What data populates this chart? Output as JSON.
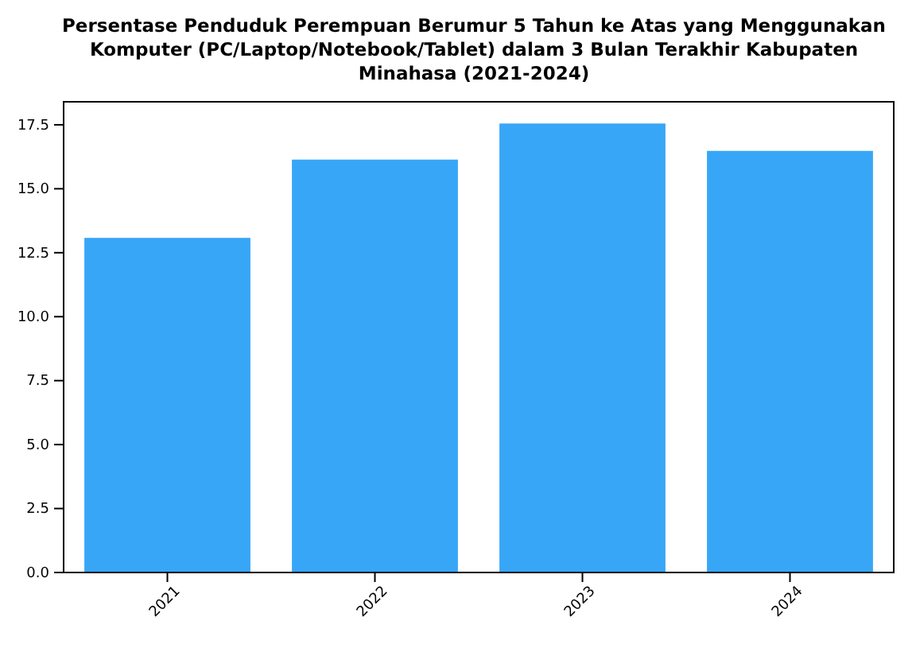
{
  "chart_data": {
    "type": "bar",
    "title": "Persentase Penduduk Perempuan Berumur 5 Tahun ke Atas yang Menggunakan Komputer (PC/Laptop/Notebook/Tablet) dalam 3 Bulan Terakhir Kabupaten Minahasa (2021-2024)",
    "categories": [
      "2021",
      "2022",
      "2023",
      "2024"
    ],
    "values": [
      13.08,
      16.14,
      17.55,
      16.48
    ],
    "color": "#38a6f7",
    "ylim": [
      0,
      18.4
    ],
    "yticks": [
      {
        "value": 0,
        "label": "0.0"
      },
      {
        "value": 2.5,
        "label": "2.5"
      },
      {
        "value": 5,
        "label": "5.0"
      },
      {
        "value": 7.5,
        "label": "7.5"
      },
      {
        "value": 10,
        "label": "10.0"
      },
      {
        "value": 12.5,
        "label": "12.5"
      },
      {
        "value": 15,
        "label": "15.0"
      },
      {
        "value": 17.5,
        "label": "17.5"
      }
    ],
    "grid": false
  }
}
